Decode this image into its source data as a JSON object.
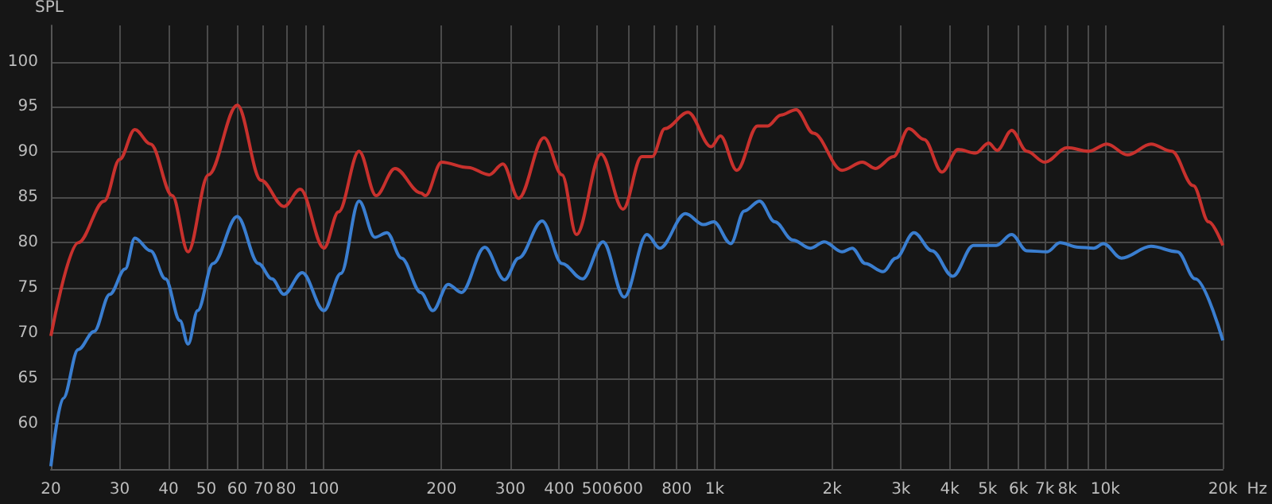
{
  "chart_data": {
    "type": "line",
    "ylabel": "SPL",
    "xlabel": "Hz",
    "log": "x",
    "grid": true,
    "marker": "none",
    "line_style": "solid",
    "xlim": [
      20,
      20000
    ],
    "ylim": [
      55,
      104
    ],
    "xticks": [
      20,
      30,
      40,
      50,
      60,
      70,
      80,
      {
        "value": 90,
        "label": null
      },
      100,
      200,
      300,
      400,
      500,
      600,
      {
        "value": 700,
        "label": null
      },
      800,
      {
        "value": 900,
        "label": null
      },
      {
        "value": 1000,
        "label": "1k"
      },
      {
        "value": 2000,
        "label": "2k"
      },
      {
        "value": 3000,
        "label": "3k"
      },
      {
        "value": 4000,
        "label": "4k"
      },
      {
        "value": 5000,
        "label": "5k"
      },
      {
        "value": 6000,
        "label": "6k"
      },
      {
        "value": 7000,
        "label": "7k"
      },
      {
        "value": 8000,
        "label": "8k"
      },
      {
        "value": 9000,
        "label": null
      },
      {
        "value": 10000,
        "label": "10k"
      },
      {
        "value": 20000,
        "label": "20k"
      }
    ],
    "yticks": [
      60,
      65,
      70,
      75,
      80,
      85,
      90,
      95,
      100
    ],
    "series": [
      {
        "color": "#c8312d",
        "x": [
          20,
          23.5,
          27.4,
          30,
          32.8,
          36,
          40.9,
          44.9,
          50.6,
          60,
          69,
          79,
          87,
          100,
          109,
          123,
          136,
          152,
          177,
          182,
          200,
          234,
          265,
          287,
          315,
          366,
          407,
          443,
          512,
          583,
          651,
          692,
          746,
          855,
          980,
          1035,
          1140,
          1288,
          1368,
          1477,
          1617,
          1790,
          2120,
          2390,
          2580,
          2870,
          3140,
          3440,
          3820,
          4200,
          4660,
          5030,
          5290,
          5760,
          6300,
          7000,
          8000,
          9070,
          10100,
          11400,
          13100,
          14800,
          16800,
          18400,
          20000
        ],
        "values": [
          69.7,
          80,
          84.6,
          89.2,
          92.5,
          90.9,
          85.2,
          79,
          87.5,
          95.2,
          86.9,
          84,
          85.9,
          79.4,
          83.4,
          90.1,
          85.2,
          88.2,
          85.5,
          85.2,
          88.9,
          88.3,
          87.5,
          88.7,
          84.9,
          91.6,
          87.5,
          80.9,
          89.8,
          83.7,
          89.5,
          89.5,
          92.6,
          94.4,
          90.6,
          91.8,
          88,
          92.9,
          92.9,
          94.1,
          94.7,
          92.1,
          88,
          88.9,
          88.2,
          89.5,
          92.6,
          91.4,
          87.8,
          90.3,
          89.9,
          91,
          90.2,
          92.4,
          90.1,
          88.9,
          90.5,
          90.1,
          90.9,
          89.7,
          90.9,
          90.1,
          86.3,
          82.3,
          79.7
        ]
      },
      {
        "color": "#3a7ed0",
        "x": [
          20,
          21.5,
          23.5,
          25.8,
          28.3,
          31,
          32.8,
          36,
          39.3,
          42.8,
          44.9,
          47.5,
          52,
          60,
          68,
          73.6,
          79,
          88,
          100,
          110.5,
          123,
          135,
          145,
          158,
          177,
          190,
          208,
          225,
          258,
          290,
          315,
          362,
          407,
          459,
          518,
          587,
          671,
          724,
          842,
          937,
          995,
          1100,
          1191,
          1304,
          1426,
          1586,
          1760,
          1910,
          2120,
          2250,
          2430,
          2700,
          2910,
          3240,
          3600,
          4070,
          4600,
          5260,
          5760,
          6300,
          7100,
          7660,
          8530,
          9350,
          9900,
          11000,
          13100,
          15300,
          17000,
          20000
        ],
        "values": [
          55.3,
          62.8,
          68.2,
          70.2,
          74.3,
          77.1,
          80.5,
          79.1,
          76,
          71.4,
          68.8,
          72.5,
          77.7,
          82.9,
          77.7,
          76,
          74.3,
          76.7,
          72.5,
          76.6,
          84.6,
          80.6,
          81.1,
          78.3,
          74.5,
          72.5,
          75.4,
          74.5,
          79.5,
          75.9,
          78.3,
          82.4,
          77.7,
          76,
          80.1,
          74,
          80.9,
          79.4,
          83.2,
          82,
          82.3,
          79.9,
          83.5,
          84.6,
          82.3,
          80.3,
          79.4,
          80.1,
          79,
          79.4,
          77.7,
          76.8,
          78.3,
          81.1,
          79.1,
          76.3,
          79.7,
          79.7,
          80.9,
          79.1,
          79,
          80,
          79.5,
          79.4,
          79.9,
          78.3,
          79.6,
          79,
          76,
          69.2
        ]
      }
    ]
  }
}
